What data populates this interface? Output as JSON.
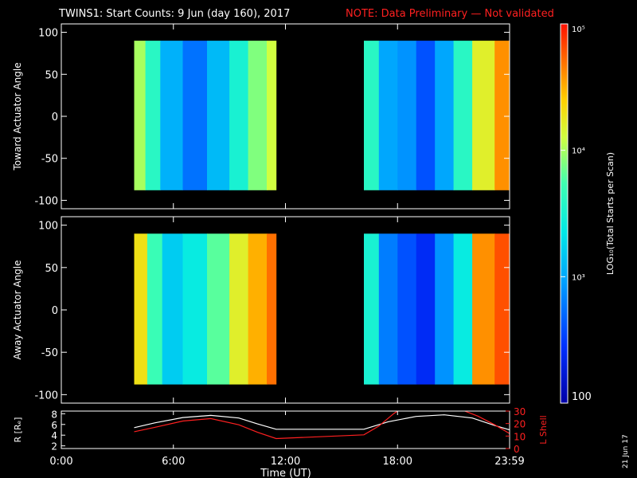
{
  "header": {
    "title": "TWINS1: Start Counts:  9 Jun (day 160), 2017",
    "note": "NOTE: Data Preliminary — Not validated"
  },
  "stamp": "21 Jun 17",
  "colors": {
    "background": "#000000",
    "note": "#ff2020",
    "axis": "#ffffff",
    "lshell": "#ff2020"
  },
  "chart_data": [
    {
      "type": "heatmap",
      "ylabel": "Toward Actuator Angle",
      "x_ticks": [
        "0:00",
        "6:00",
        "12:00",
        "18:00",
        "23:59"
      ],
      "y_ticks": [
        "100",
        "50",
        "0",
        "-50",
        "-100"
      ],
      "xlim_hours": [
        0,
        24
      ],
      "ylim": [
        -110,
        110
      ],
      "y_extent": [
        -88,
        90
      ],
      "data_intervals_hours": [
        [
          3.9,
          11.5
        ],
        [
          16.2,
          24.0
        ]
      ],
      "colorscale_log10": {
        "min": 2,
        "max": 5
      },
      "segments": [
        {
          "t": 3.9,
          "log10": 4.0
        },
        {
          "t": 4.5,
          "log10": 3.6
        },
        {
          "t": 5.3,
          "log10": 3.05
        },
        {
          "t": 6.5,
          "log10": 2.75
        },
        {
          "t": 7.8,
          "log10": 3.1
        },
        {
          "t": 9.0,
          "log10": 3.5
        },
        {
          "t": 10.0,
          "log10": 3.9
        },
        {
          "t": 11.0,
          "log10": 4.1
        },
        {
          "t": 16.2,
          "log10": 3.6
        },
        {
          "t": 17.0,
          "log10": 3.0
        },
        {
          "t": 18.0,
          "log10": 2.9
        },
        {
          "t": 19.0,
          "log10": 2.6
        },
        {
          "t": 20.0,
          "log10": 3.0
        },
        {
          "t": 21.0,
          "log10": 3.6
        },
        {
          "t": 22.0,
          "log10": 4.2
        },
        {
          "t": 23.2,
          "log10": 4.6
        }
      ]
    },
    {
      "type": "heatmap",
      "ylabel": "Away Actuator Angle",
      "x_ticks": [
        "0:00",
        "6:00",
        "12:00",
        "18:00",
        "23:59"
      ],
      "y_ticks": [
        "100",
        "50",
        "0",
        "-50",
        "-100"
      ],
      "xlim_hours": [
        0,
        24
      ],
      "ylim": [
        -110,
        110
      ],
      "y_extent": [
        -88,
        90
      ],
      "data_intervals_hours": [
        [
          3.9,
          11.5
        ],
        [
          16.2,
          24.0
        ]
      ],
      "colorscale_log10": {
        "min": 2,
        "max": 5
      },
      "segments": [
        {
          "t": 3.9,
          "log10": 4.3
        },
        {
          "t": 4.6,
          "log10": 3.7
        },
        {
          "t": 5.4,
          "log10": 3.2
        },
        {
          "t": 6.5,
          "log10": 3.4
        },
        {
          "t": 7.8,
          "log10": 3.8
        },
        {
          "t": 9.0,
          "log10": 4.2
        },
        {
          "t": 10.0,
          "log10": 4.5
        },
        {
          "t": 11.0,
          "log10": 4.7
        },
        {
          "t": 16.2,
          "log10": 3.5
        },
        {
          "t": 17.0,
          "log10": 2.8
        },
        {
          "t": 18.0,
          "log10": 2.6
        },
        {
          "t": 19.0,
          "log10": 2.4
        },
        {
          "t": 20.0,
          "log10": 2.9
        },
        {
          "t": 21.0,
          "log10": 3.4
        },
        {
          "t": 22.0,
          "log10": 4.6
        },
        {
          "t": 23.2,
          "log10": 4.8
        }
      ]
    },
    {
      "type": "line",
      "ylabel_left": "R [Rₑ]",
      "ylabel_right": "L Shell",
      "x_ticks": [
        "0:00",
        "6:00",
        "12:00",
        "18:00",
        "23:59"
      ],
      "xlabel": "Time (UT)",
      "y_ticks_left": [
        "8",
        "6",
        "4",
        "2"
      ],
      "y_ticks_right": [
        "30",
        "20",
        "10",
        "0"
      ],
      "ylim_left": [
        1.5,
        8.5
      ],
      "ylim_right": [
        0,
        30
      ],
      "series": [
        {
          "axis": "left",
          "color": "#ffffff",
          "x": [
            3.9,
            5.0,
            6.5,
            8.0,
            9.5,
            10.5,
            11.5,
            16.2,
            17.5,
            19.0,
            20.5,
            22.0,
            23.2,
            24.0
          ],
          "y": [
            5.4,
            6.3,
            7.3,
            7.7,
            7.2,
            6.1,
            5.1,
            5.1,
            6.5,
            7.5,
            7.8,
            7.2,
            5.8,
            5.0
          ]
        },
        {
          "axis": "right",
          "color": "#ff2020",
          "x": [
            3.9,
            5.0,
            6.5,
            8.0,
            9.5,
            10.5,
            11.5,
            16.2,
            17.0,
            17.8,
            18.0
          ],
          "y": [
            13.5,
            17.0,
            22.0,
            24.0,
            19.0,
            13.0,
            8.0,
            11.0,
            18.0,
            28.0,
            30.0
          ]
        },
        {
          "axis": "right",
          "color": "#ff2020",
          "x": [
            21.6,
            22.3,
            23.2,
            24.0
          ],
          "y": [
            30.0,
            26.0,
            19.0,
            12.0
          ]
        }
      ]
    }
  ],
  "colorbar": {
    "label": "LOG₁₀(Total Starts per Scan)",
    "tick_labels": [
      "10⁵",
      "10⁴",
      "10³",
      "100"
    ],
    "tick_log10": [
      5,
      4,
      3,
      2
    ]
  }
}
